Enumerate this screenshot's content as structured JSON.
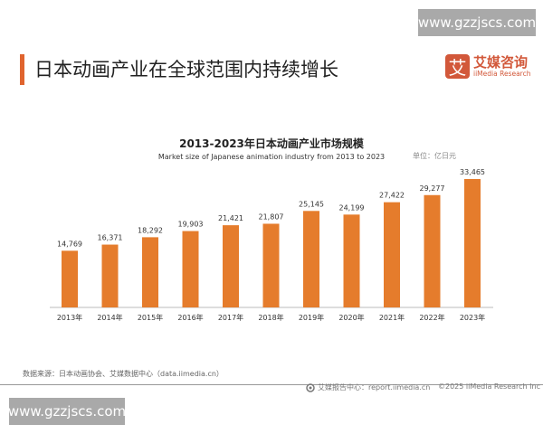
{
  "watermark": "www.gzzjscs.com",
  "header": {
    "title": "日本动画产业在全球范围内持续增长",
    "logo_mark": "艾",
    "logo_cn": "艾媒咨询",
    "logo_en": "iiMedia Research"
  },
  "colors": {
    "bar": "#e57c2c",
    "accent": "#e0642e",
    "brand": "#d2583a"
  },
  "chart_data": {
    "type": "bar",
    "title": "2013-2023年日本动画产业市场规模",
    "subtitle": "Market size of Japanese animation industry from 2013 to 2023",
    "unit": "单位：亿日元",
    "categories": [
      "2013年",
      "2014年",
      "2015年",
      "2016年",
      "2017年",
      "2018年",
      "2019年",
      "2020年",
      "2021年",
      "2022年",
      "2023年"
    ],
    "values": [
      14769,
      16371,
      18292,
      19903,
      21421,
      21807,
      25145,
      24199,
      27422,
      29277,
      33465
    ],
    "value_labels": [
      "14,769",
      "16,371",
      "18,292",
      "19,903",
      "21,421",
      "21,807",
      "25,145",
      "24,199",
      "27,422",
      "29,277",
      "33,465"
    ],
    "ylim": [
      0,
      33465
    ],
    "grid": false,
    "legend": "none"
  },
  "footer": {
    "source": "数据来源：日本动画协会、艾媒数据中心（data.iimedia.cn）",
    "report": "艾媒报告中心：report.iimedia.cn",
    "copyright": "©2025  iiMedia Research  Inc"
  }
}
